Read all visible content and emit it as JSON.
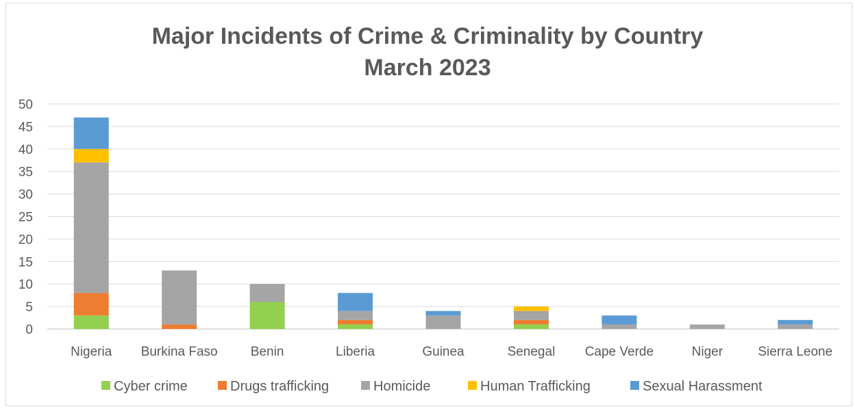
{
  "chart_data": {
    "type": "bar",
    "stacked": true,
    "title": [
      "Major Incidents of Crime & Criminality by Country",
      "March 2023"
    ],
    "categories": [
      "Nigeria",
      "Burkina Faso",
      "Benin",
      "Liberia",
      "Guinea",
      "Senegal",
      "Cape Verde",
      "Niger",
      "Sierra Leone"
    ],
    "series": [
      {
        "name": "Cyber crime",
        "color": "#92d050",
        "values": [
          3,
          0,
          6,
          1,
          0,
          1,
          0,
          0,
          0
        ]
      },
      {
        "name": "Drugs trafficking",
        "color": "#ed7d31",
        "values": [
          5,
          1,
          0,
          1,
          0,
          1,
          0,
          0,
          0
        ]
      },
      {
        "name": "Homicide",
        "color": "#a5a5a5",
        "values": [
          29,
          12,
          4,
          2,
          3,
          2,
          1,
          1,
          1
        ]
      },
      {
        "name": "Human Trafficking",
        "color": "#ffc000",
        "values": [
          3,
          0,
          0,
          0,
          0,
          1,
          0,
          0,
          0
        ]
      },
      {
        "name": "Sexual Harassment",
        "color": "#5b9bd5",
        "values": [
          7,
          0,
          0,
          4,
          1,
          0,
          2,
          0,
          1
        ]
      }
    ],
    "ylim": [
      0,
      50
    ],
    "yticks": [
      0,
      5,
      10,
      15,
      20,
      25,
      30,
      35,
      40,
      45,
      50
    ],
    "grid": true,
    "legend_position": "bottom"
  }
}
